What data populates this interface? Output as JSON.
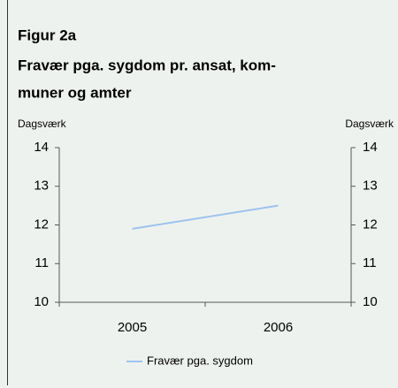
{
  "chart_data": {
    "type": "line",
    "figure_label": "Figur 2a",
    "title": [
      "Fravær pga. sygdom pr. ansat, kom-",
      "muner og amter"
    ],
    "y_label": "Dagsværk",
    "y2_label": "Dagsværk",
    "categories": [
      "2005",
      "2006"
    ],
    "series": [
      {
        "name": "Fravær pga. sygdom",
        "color": "#9cc3ef",
        "values": [
          11.9,
          12.5
        ]
      }
    ],
    "ylim": [
      10,
      14
    ],
    "yticks": [
      10,
      11,
      12,
      13,
      14
    ],
    "y2lim": [
      10,
      14
    ],
    "y2ticks": [
      10,
      11,
      12,
      13,
      14
    ],
    "legend": "bottom"
  }
}
